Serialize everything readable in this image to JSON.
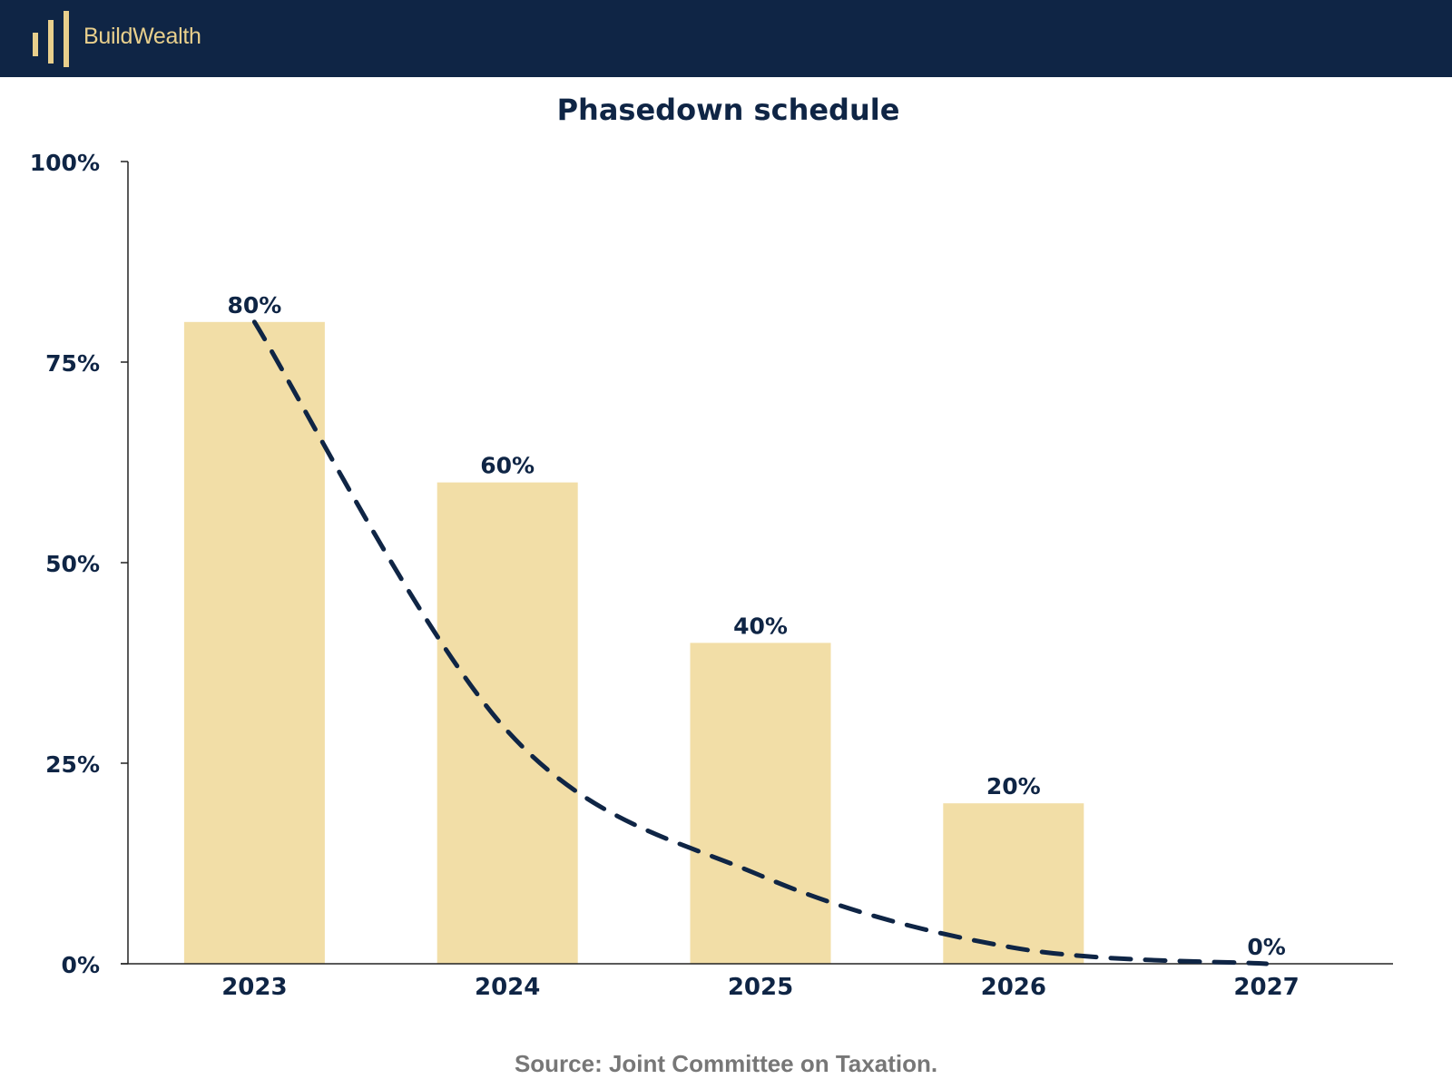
{
  "header": {
    "brand_name": "BuildWealth",
    "logo_icon": "bar-columns-logo-icon"
  },
  "colors": {
    "header_bg": "#0f2545",
    "brand_gold": "#e8cf8c",
    "bar_fill": "#f2dea7",
    "text_navy": "#0f2545",
    "source_gray": "#777777"
  },
  "chart_data": {
    "type": "bar",
    "title": "Phasedown schedule",
    "xlabel": "",
    "ylabel": "",
    "categories": [
      "2023",
      "2024",
      "2025",
      "2026",
      "2027"
    ],
    "values": [
      80,
      60,
      40,
      20,
      0
    ],
    "data_labels": [
      "80%",
      "60%",
      "40%",
      "20%",
      "0%"
    ],
    "ylim": [
      0,
      100
    ],
    "yticks": [
      0,
      25,
      50,
      75,
      100
    ],
    "ytick_labels": [
      "0%",
      "25%",
      "50%",
      "75%",
      "100%"
    ],
    "grid": false,
    "legend": "none",
    "overlay": {
      "type": "line",
      "style": "dashed",
      "x": [
        "2023",
        "2024",
        "2025",
        "2026",
        "2027"
      ],
      "y": [
        80,
        29,
        11,
        2,
        0
      ]
    }
  },
  "source": "Source: Joint Committee on Taxation."
}
